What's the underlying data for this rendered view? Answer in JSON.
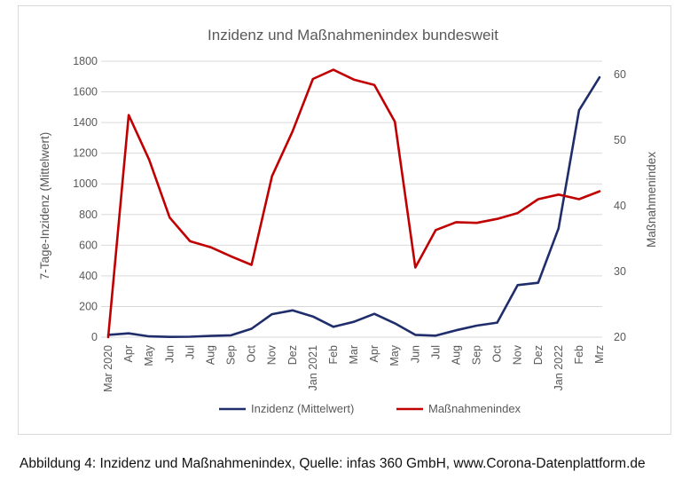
{
  "caption": "Abbildung 4: Inzidenz und Maßnahmenindex, Quelle: infas 360 GmbH, www.Corona-Datenplattform.de",
  "chart_data": {
    "type": "line",
    "title": "Inzidenz und Maßnahmenindex bundesweit",
    "ylabel": "7-Tage-Inzidenz (Mittelwert)",
    "y2label": "Maßnahmenindex",
    "categories": [
      "Mar 2020",
      "Apr",
      "May",
      "Jun",
      "Jul",
      "Aug",
      "Sep",
      "Oct",
      "Nov",
      "Dez",
      "Jan 2021",
      "Feb",
      "Mar",
      "Apr",
      "May",
      "Jun",
      "Jul",
      "Aug",
      "Sep",
      "Oct",
      "Nov",
      "Dez",
      "Jan 2022",
      "Feb",
      "Mrz"
    ],
    "ylim": [
      0,
      1800
    ],
    "yticks": [
      "0",
      "200",
      "400",
      "600",
      "800",
      "1000",
      "1200",
      "1400",
      "1600",
      "1800"
    ],
    "y2lim": [
      20,
      62
    ],
    "y2ticks": [
      "20",
      "30",
      "40",
      "50",
      "60"
    ],
    "grid": true,
    "legend_position": "bottom",
    "series": [
      {
        "name": "Inzidenz (Mittelwert)",
        "axis": "left",
        "color": "#1f2d6b",
        "values": [
          15,
          25,
          5,
          2,
          3,
          8,
          12,
          55,
          150,
          175,
          135,
          68,
          100,
          152,
          90,
          15,
          10,
          45,
          75,
          95,
          340,
          355,
          710,
          1480,
          1695
        ]
      },
      {
        "name": "Maßnahmenindex",
        "axis": "right",
        "color": "#c00000",
        "values": [
          20,
          53.8,
          47,
          38.2,
          34.6,
          33.7,
          32.3,
          31,
          44.5,
          51.3,
          59.3,
          60.7,
          59.2,
          58.4,
          52.8,
          30.6,
          36.3,
          37.5,
          37.4,
          38,
          38.9,
          41,
          41.7,
          41,
          42.2
        ]
      }
    ]
  }
}
